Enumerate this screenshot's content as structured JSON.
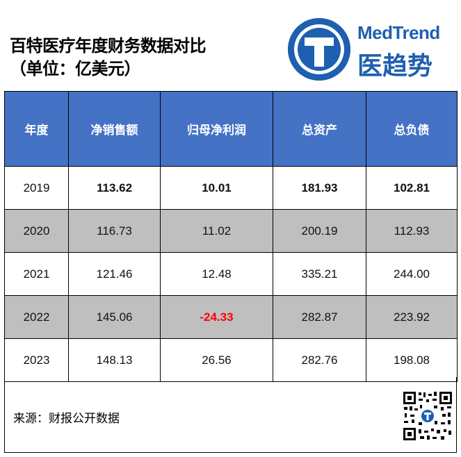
{
  "title": {
    "line1": "百特医疗年度财务数据对比",
    "line2": "（单位：亿美元）"
  },
  "logo": {
    "icon": "T",
    "en": "MedTrend",
    "cn": "医趋势"
  },
  "table": {
    "headers": [
      "年度",
      "净销售额",
      "归母净利润",
      "总资产",
      "总负债"
    ],
    "rows": [
      [
        "2019",
        "113.62",
        "10.01",
        "181.93",
        "102.81"
      ],
      [
        "2020",
        "116.73",
        "11.02",
        "200.19",
        "112.93"
      ],
      [
        "2021",
        "121.46",
        "12.48",
        "335.21",
        "244.00"
      ],
      [
        "2022",
        "145.06",
        "-24.33",
        "282.87",
        "223.92"
      ],
      [
        "2023",
        "148.13",
        "26.56",
        "282.76",
        "198.08"
      ]
    ]
  },
  "colors": {
    "header_bg": "#4472c4",
    "shade_row": "#bfbfbf",
    "negative": "#ff0000",
    "brand": "#1f5fb0"
  },
  "footer": {
    "source": "来源：财报公开数据",
    "qr_icon": "qr-code-icon"
  }
}
